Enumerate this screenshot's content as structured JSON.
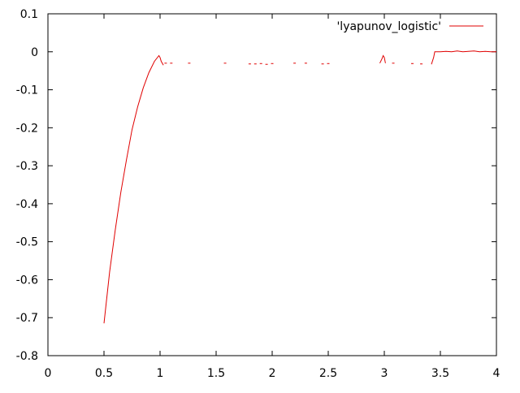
{
  "chart_data": {
    "type": "line",
    "title": "",
    "xlabel": "",
    "ylabel": "",
    "xlim": [
      0,
      4
    ],
    "ylim": [
      -0.8,
      0.1
    ],
    "grid": false,
    "legend_position": "top-right",
    "x_ticks": [
      {
        "value": 0,
        "label": "0"
      },
      {
        "value": 0.5,
        "label": "0.5"
      },
      {
        "value": 1,
        "label": "1"
      },
      {
        "value": 1.5,
        "label": "1.5"
      },
      {
        "value": 2,
        "label": "2"
      },
      {
        "value": 2.5,
        "label": "2.5"
      },
      {
        "value": 3,
        "label": "3"
      },
      {
        "value": 3.5,
        "label": "3.5"
      },
      {
        "value": 4,
        "label": "4"
      }
    ],
    "y_ticks": [
      {
        "value": 0.1,
        "label": "0.1"
      },
      {
        "value": 0,
        "label": "0"
      },
      {
        "value": -0.1,
        "label": "-0.1"
      },
      {
        "value": -0.2,
        "label": "-0.2"
      },
      {
        "value": -0.3,
        "label": "-0.3"
      },
      {
        "value": -0.4,
        "label": "-0.4"
      },
      {
        "value": -0.5,
        "label": "-0.5"
      },
      {
        "value": -0.6,
        "label": "-0.6"
      },
      {
        "value": -0.7,
        "label": "-0.7"
      },
      {
        "value": -0.8,
        "label": "-0.8"
      }
    ],
    "series": [
      {
        "name": "'lyapunov_logistic'",
        "color": "#e00000",
        "x": [
          0.5,
          0.55,
          0.6,
          0.65,
          0.7,
          0.75,
          0.8,
          0.85,
          0.9,
          0.95,
          0.99,
          1.0,
          1.01,
          1.03
        ],
        "y": [
          -0.715,
          -0.58,
          -0.47,
          -0.37,
          -0.285,
          -0.205,
          -0.145,
          -0.095,
          -0.055,
          -0.025,
          -0.01,
          -0.015,
          -0.025,
          -0.035
        ]
      },
      {
        "name": "",
        "color": "#e00000",
        "x": [
          2.96,
          2.98,
          2.99,
          3.0,
          3.01
        ],
        "y": [
          -0.03,
          -0.018,
          -0.01,
          -0.015,
          -0.03
        ]
      },
      {
        "name": "",
        "color": "#e00000",
        "x": [
          3.42,
          3.44,
          3.45,
          3.5,
          3.55,
          3.6,
          3.65,
          3.7,
          3.75,
          3.8,
          3.85,
          3.9,
          3.95,
          4.0
        ],
        "y": [
          -0.033,
          -0.015,
          0.0,
          0.0,
          0.001,
          0.0,
          0.002,
          0.0,
          0.001,
          0.002,
          0.0,
          0.001,
          0.0,
          0.0
        ]
      },
      {
        "name": "",
        "color": "#e00000",
        "mode": "points",
        "x": [
          1.05,
          1.1,
          1.26,
          1.58,
          1.8,
          1.85,
          1.9,
          1.95,
          2.0,
          2.2,
          2.3,
          2.45,
          2.5,
          3.08,
          3.25,
          3.33
        ],
        "y": [
          -0.03,
          -0.03,
          -0.03,
          -0.03,
          -0.032,
          -0.032,
          -0.031,
          -0.033,
          -0.031,
          -0.03,
          -0.03,
          -0.032,
          -0.031,
          -0.03,
          -0.031,
          -0.032
        ]
      }
    ]
  }
}
